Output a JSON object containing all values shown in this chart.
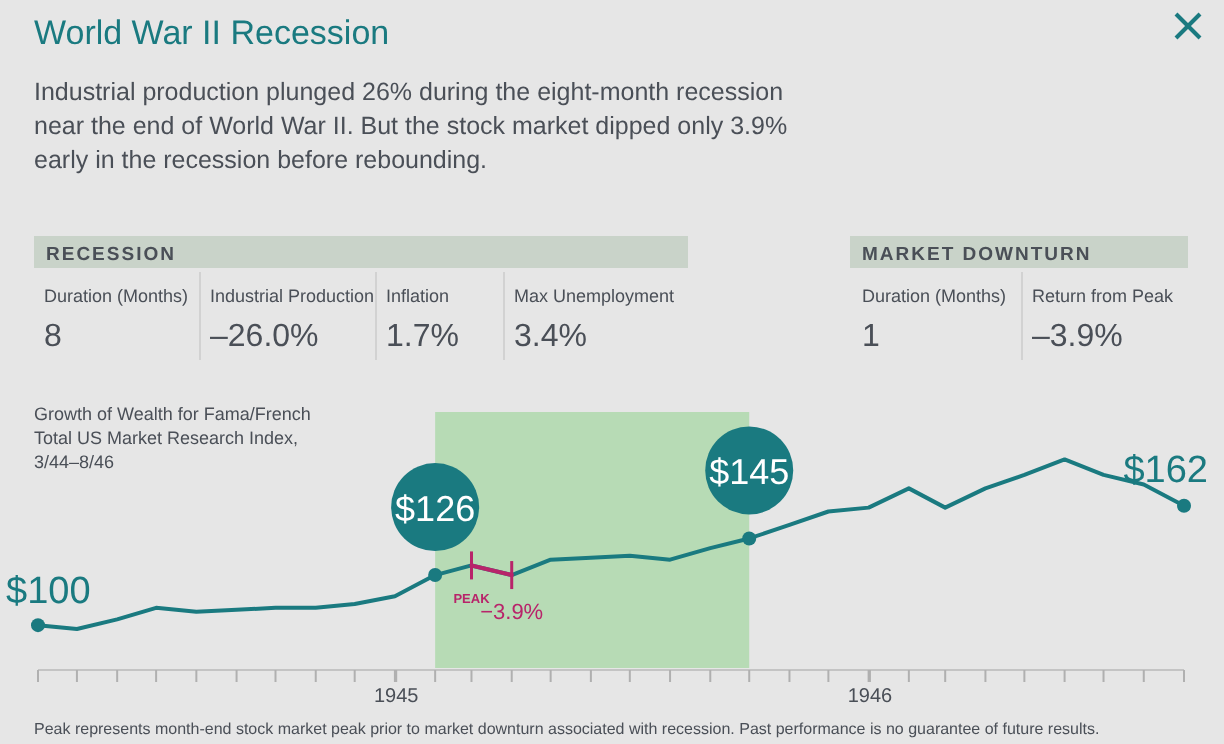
{
  "chart_data": [
    {
      "type": "other",
      "title": "World War II Recession",
      "subtitle": "Industrial production plunged 26% during the eight-month recession near the end of World War II. But the stock market dipped only 3.9% early in the recession before rebounding.",
      "annotations": [
        "RECESSION",
        "Duration (Months)",
        "8",
        "Industrial Production",
        "–26.0%",
        "Inflation",
        "1.7%",
        "Max Unemployment",
        "3.4%",
        "MARKET DOWNTURN",
        "Duration (Months)",
        "1",
        "Return from Peak",
        "–3.9%"
      ]
    },
    {
      "type": "line",
      "title": "Growth of Wealth for Fama/French Total US Market Research Index, 3/44–8/46",
      "x": [
        "1944-03-31",
        "1944-04-30",
        "1944-05-31",
        "1944-06-30",
        "1944-07-31",
        "1944-08-31",
        "1944-09-30",
        "1944-10-31",
        "1944-11-30",
        "1944-12-31",
        "1945-01-31",
        "1945-02-28",
        "1945-03-31",
        "1945-04-30",
        "1945-05-31",
        "1945-06-30",
        "1945-07-31",
        "1945-08-31",
        "1945-09-30",
        "1945-10-31",
        "1945-11-30",
        "1945-12-31",
        "1946-01-31",
        "1946-02-28",
        "1946-03-31",
        "1946-04-30",
        "1946-05-31",
        "1946-06-30",
        "1946-07-31",
        "1946-08-31"
      ],
      "series": [
        {
          "color": "#1a7a80",
          "values": [
            100,
            98,
            103,
            109,
            107,
            108,
            109,
            109,
            111,
            115,
            126,
            131,
            126,
            134,
            135,
            136,
            134,
            140,
            145,
            152,
            159,
            161,
            171,
            161,
            171,
            178,
            186,
            178,
            173,
            162
          ],
          "value_labels": [
            "$100",
            null,
            null,
            null,
            null,
            null,
            null,
            null,
            null,
            null,
            "$126",
            null,
            null,
            null,
            null,
            null,
            null,
            null,
            "$145",
            null,
            null,
            null,
            null,
            null,
            null,
            null,
            null,
            null,
            null,
            "$162"
          ]
        },
        {
          "color": "#b8246a",
          "x": [
            "1945-02-28",
            "1945-03-31"
          ],
          "values": [
            131,
            126
          ]
        }
      ],
      "xlim": [
        "1944-03-31",
        "1946-08-31"
      ],
      "xticks": [
        {
          "value": "1945-01-01",
          "label": "1945"
        },
        {
          "value": "1946-01-01",
          "label": "1946"
        }
      ],
      "tick_labels": "x",
      "bands": [
        {
          "axis": "x",
          "from": "1945-01-31",
          "to": "1945-09-30",
          "color": "#b7dbb5"
        }
      ],
      "annotations": [
        {
          "text": "PEAK",
          "x": "1945-02-28",
          "y": 131
        },
        {
          "text": "−3.9%",
          "x": "1945-03-31",
          "y": 126
        },
        "Peak represents month-end stock market peak prior to market downturn associated with recession. Past performance is no guarantee of future results."
      ]
    }
  ]
}
